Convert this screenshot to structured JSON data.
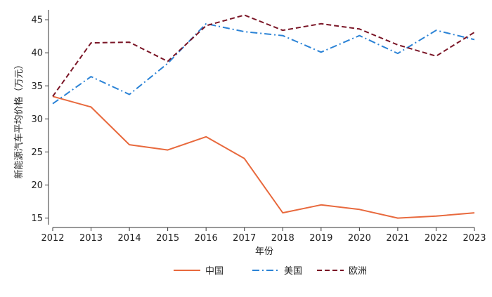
{
  "chart_data": {
    "type": "line",
    "title": "",
    "xlabel": "年份",
    "ylabel": "新能源汽车平均价格（万元）",
    "x": [
      2012,
      2013,
      2014,
      2015,
      2016,
      2017,
      2018,
      2019,
      2020,
      2021,
      2022,
      2023
    ],
    "xlim": [
      2012,
      2023
    ],
    "ylim": [
      14,
      46.5
    ],
    "yticks": [
      15,
      20,
      25,
      30,
      35,
      40,
      45
    ],
    "grid": false,
    "legend_position": "bottom",
    "series": [
      {
        "name": "中国",
        "color": "#e8693d",
        "dash": "solid",
        "values": [
          33.4,
          31.8,
          26.1,
          25.3,
          27.3,
          24.0,
          15.8,
          17.0,
          16.3,
          15.0,
          15.3,
          15.8
        ]
      },
      {
        "name": "美国",
        "color": "#2b83d6",
        "dash": "dashdot",
        "values": [
          32.3,
          36.4,
          33.7,
          38.4,
          44.4,
          43.2,
          42.6,
          40.1,
          42.6,
          39.9,
          43.4,
          42.0
        ]
      },
      {
        "name": "欧洲",
        "color": "#7a1526",
        "dash": "dashed",
        "values": [
          33.4,
          41.5,
          41.6,
          38.7,
          44.1,
          45.7,
          43.4,
          44.4,
          43.6,
          41.2,
          39.5,
          43.1
        ]
      }
    ]
  }
}
